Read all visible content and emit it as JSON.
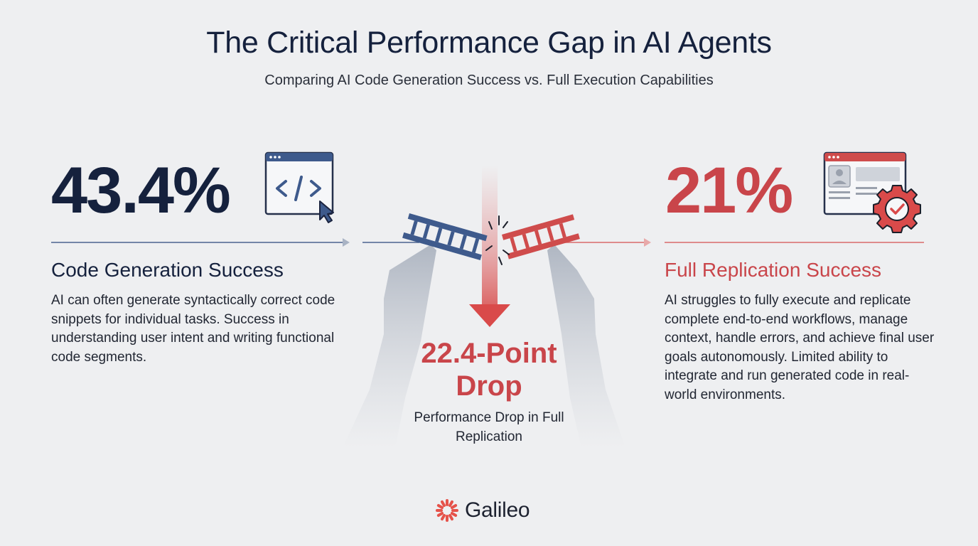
{
  "header": {
    "title": "The Critical Performance Gap in AI Agents",
    "subtitle": "Comparing AI Code Generation Success vs. Full Execution Capabilities"
  },
  "left_panel": {
    "value": "43.4%",
    "heading": "Code Generation Success",
    "description": "AI can often generate syntactically correct code snippets for individual tasks. Success in understanding user intent and writing functional code segments.",
    "icon": "code-window-icon",
    "accent_color": "#15213d"
  },
  "right_panel": {
    "value": "21%",
    "heading": "Full Replication Success",
    "description": "AI struggles to fully execute and replicate complete end-to-end workflows, manage context, handle errors, and achieve final user goals autonomously. Limited ability to integrate and run generated code in real-world environments.",
    "icon": "workflow-gear-icon",
    "accent_color": "#c9454a"
  },
  "center": {
    "drop_value": "22.4-Point Drop",
    "caption": "Performance Drop in Full Replication",
    "icon": "broken-bridge-icon",
    "arrow_icon": "down-arrow-icon"
  },
  "footer": {
    "brand_name": "Galileo",
    "logo_icon": "galileo-starburst-icon",
    "brand_color": "#e5524a"
  }
}
